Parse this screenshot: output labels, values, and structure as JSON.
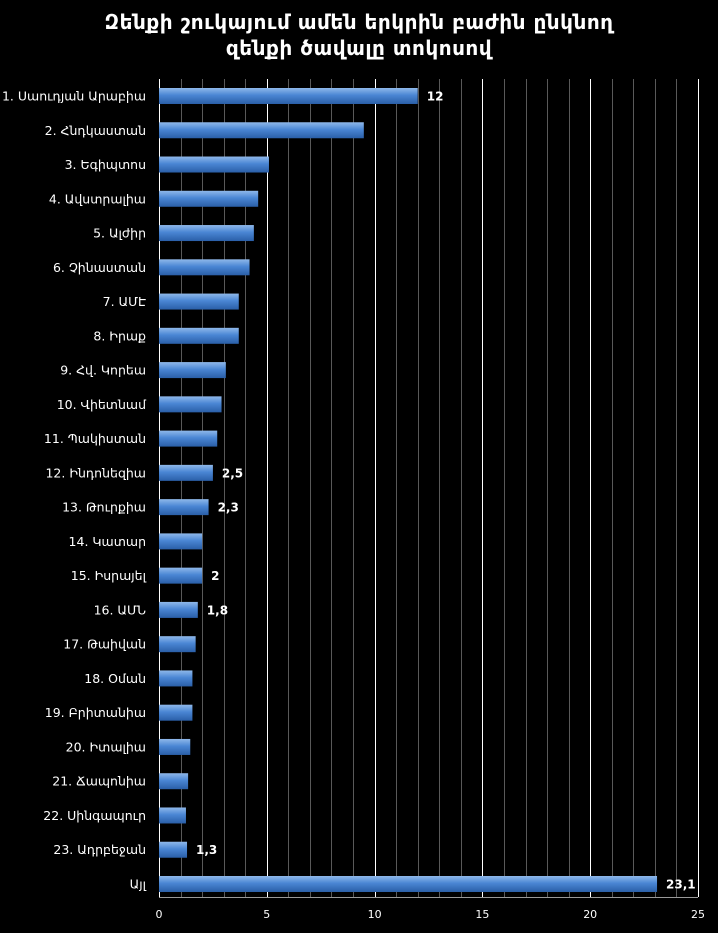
{
  "chart_data": {
    "type": "bar",
    "orientation": "horizontal",
    "title_lines": [
      "Զենքի շուկայում ամեն երկրին բաժին ընկնող",
      "զենքի ծավալը տոկոսով"
    ],
    "xlabel": "",
    "ylabel": "",
    "xlim": [
      0,
      25
    ],
    "x_ticks": [
      0,
      5,
      10,
      15,
      20,
      25
    ],
    "grid": true,
    "legend": "none",
    "categories": [
      "1. Սաուդյան Արաբիա",
      "2. Հնդկաստան",
      "3. Եգիպտոս",
      "4. Ավստրալիա",
      "5. Ալժիր",
      "6. Չինաստան",
      "7. ԱՄԷ",
      "8. Իրաք",
      "9. Հվ. Կորեա",
      "10. Վիետնամ",
      "11. Պակիստան",
      "12. Ինդոնեզիա",
      "13. Թուրքիա",
      "14. Կատար",
      "15. Իսրայել",
      "16. ԱՄՆ",
      "17. Թաիվան",
      "18. Օման",
      "19. Բրիտանիա",
      "20. Իտալիա",
      "21. Ճապոնիա",
      "22. Սինգապուր",
      "23. Ադրբեջան",
      "Այլ"
    ],
    "values": [
      12,
      9.5,
      5.1,
      4.6,
      4.4,
      4.2,
      3.7,
      3.7,
      3.1,
      2.9,
      2.7,
      2.5,
      2.3,
      2.0,
      2.0,
      1.8,
      1.7,
      1.55,
      1.55,
      1.45,
      1.35,
      1.25,
      1.3,
      23.1
    ],
    "data_labels": [
      "12",
      "",
      "",
      "",
      "",
      "",
      "",
      "",
      "",
      "",
      "",
      "2,5",
      "2,3",
      "",
      "2",
      "1,8",
      "",
      "",
      "",
      "",
      "",
      "",
      "1,3",
      "23,1"
    ],
    "colors": {
      "background": "#000000",
      "bar_light": "#8fb8ea",
      "bar_mid": "#4a86d4",
      "bar_dark": "#2a5fa8",
      "grid": "#ffffff",
      "text": "#ffffff"
    }
  }
}
